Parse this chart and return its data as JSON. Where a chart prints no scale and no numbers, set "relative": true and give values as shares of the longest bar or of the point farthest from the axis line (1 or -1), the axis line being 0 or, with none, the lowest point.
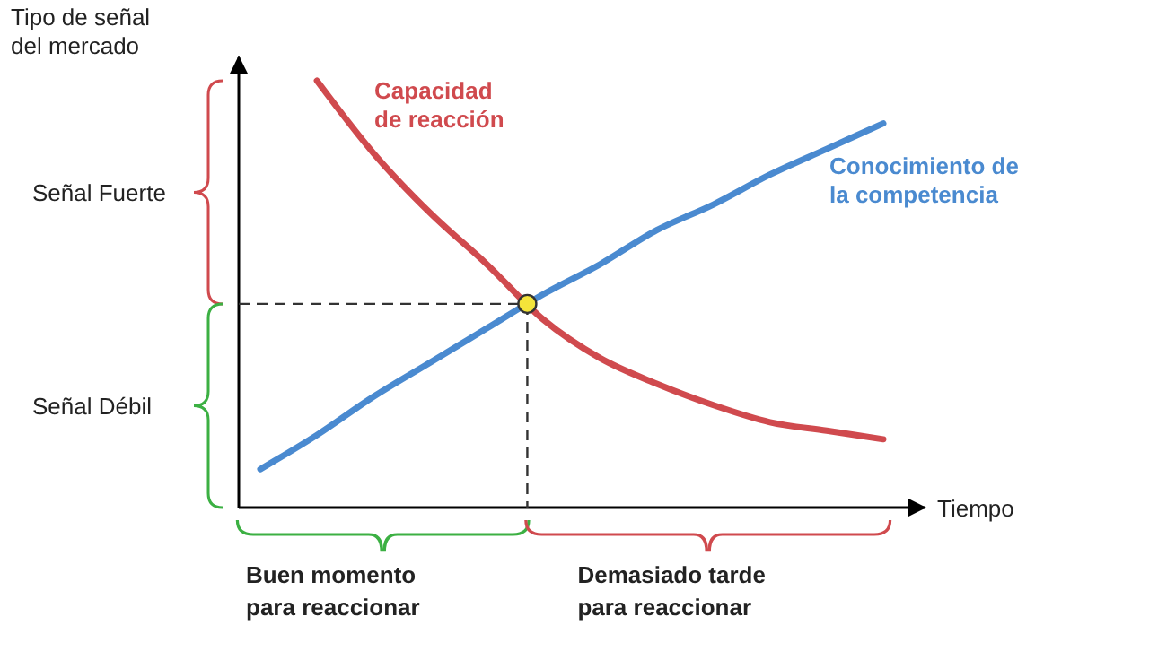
{
  "chart_data": {
    "type": "line",
    "relative": true,
    "xlabel": "Tiempo",
    "ylabel": "Tipo de señal del mercado",
    "categories": [
      null,
      null,
      null,
      null,
      null,
      null,
      null,
      null,
      null,
      null,
      null,
      null
    ],
    "series": [
      {
        "name": "Capacidad de reacción",
        "color": "#d04a4e",
        "values": [
          null,
          1.0,
          0.83,
          0.69,
          0.57,
          0.44,
          0.35,
          0.29,
          0.24,
          0.2,
          0.18,
          0.16
        ]
      },
      {
        "name": "Conocimiento de la competencia",
        "color": "#4a8ad0",
        "values": [
          0.09,
          0.17,
          0.26,
          0.34,
          0.42,
          0.5,
          0.57,
          0.65,
          0.71,
          0.78,
          0.84,
          0.9
        ]
      }
    ],
    "annotations": [
      "Señal Fuerte",
      "Señal Débil",
      "Buen momento para reaccionar",
      "Demasiado tarde para reaccionar"
    ],
    "marker": "none",
    "line_style": "solid"
  }
}
